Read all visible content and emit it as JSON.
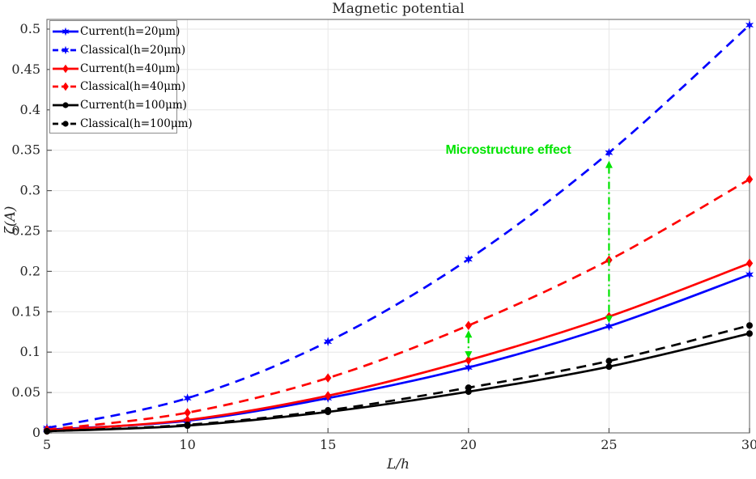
{
  "title": "Magnetic potential",
  "annotation": {
    "label": "Microstructure effect",
    "color": "#00E400"
  },
  "chart_data": {
    "type": "line",
    "title": "Magnetic potential",
    "xlabel": "L/h",
    "ylabel": "ζ(A)",
    "xlim": [
      5,
      30
    ],
    "ylim": [
      0,
      0.512
    ],
    "grid": true,
    "legend_position": "top-left",
    "x": [
      5,
      10,
      15,
      20,
      25,
      30
    ],
    "x_ticks": [
      5,
      10,
      15,
      20,
      25,
      30
    ],
    "x_tick_labels": [
      "5",
      "10",
      "15",
      "20",
      "25",
      "30"
    ],
    "y_ticks": [
      0,
      0.05,
      0.1,
      0.15,
      0.2,
      0.25,
      0.3,
      0.35,
      0.4,
      0.45,
      0.5
    ],
    "y_tick_labels": [
      "0",
      "0.05",
      "0.1",
      "0.15",
      "0.2",
      "0.25",
      "0.3",
      "0.35",
      "0.4",
      "0.45",
      "0.5"
    ],
    "series": [
      {
        "label": "Current(h=20μm)",
        "color": "#0000FF",
        "style": "solid",
        "marker": "hexagram",
        "values": [
          0.004,
          0.015,
          0.043,
          0.081,
          0.132,
          0.196
        ]
      },
      {
        "label": "Classical(h=20μm)",
        "color": "#0000FF",
        "style": "dashed",
        "marker": "hexagram",
        "values": [
          0.006,
          0.043,
          0.113,
          0.215,
          0.347,
          0.505
        ]
      },
      {
        "label": "Current(h=40μm)",
        "color": "#FF0000",
        "style": "solid",
        "marker": "diamond",
        "values": [
          0.003,
          0.016,
          0.046,
          0.09,
          0.144,
          0.21
        ]
      },
      {
        "label": "Classical(h=40μm)",
        "color": "#FF0000",
        "style": "dashed",
        "marker": "diamond",
        "values": [
          0.004,
          0.025,
          0.068,
          0.133,
          0.214,
          0.314
        ]
      },
      {
        "label": "Current(h=100μm)",
        "color": "#000000",
        "style": "solid",
        "marker": "circle",
        "values": [
          0.002,
          0.009,
          0.026,
          0.051,
          0.082,
          0.123
        ]
      },
      {
        "label": "Classical(h=100μm)",
        "color": "#000000",
        "style": "dashed",
        "marker": "circle",
        "values": [
          0.002,
          0.01,
          0.028,
          0.056,
          0.089,
          0.133
        ]
      }
    ],
    "arrows": [
      {
        "x": 25,
        "y_top": 0.337,
        "y_bottom": 0.136
      },
      {
        "x": 20,
        "y_top": 0.127,
        "y_bottom": 0.092
      }
    ],
    "colors": {
      "grid": "#E6E6E6",
      "box": "#777777",
      "tick": "#555555",
      "tick_label": "#262626",
      "arrow": "#00E400"
    }
  }
}
